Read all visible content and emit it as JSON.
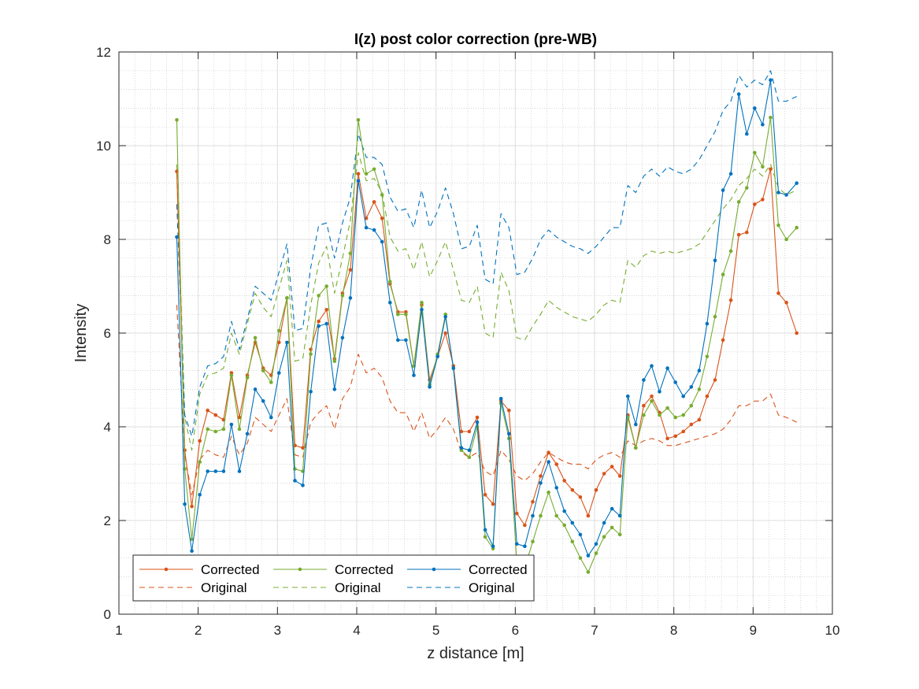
{
  "chart_data": {
    "type": "line",
    "title": "I(z) post color correction (pre-WB)",
    "xlabel": "z distance [m]",
    "ylabel": "Intensity",
    "xlim": [
      1,
      10
    ],
    "ylim": [
      0,
      12
    ],
    "xticks": [
      1,
      2,
      3,
      4,
      5,
      6,
      7,
      8,
      9,
      10
    ],
    "yticks": [
      0,
      2,
      4,
      6,
      8,
      10,
      12
    ],
    "grid": true,
    "minor_grid": true,
    "legend_position": "bottom-left",
    "x": [
      1.73,
      1.83,
      1.92,
      2.02,
      2.12,
      2.22,
      2.32,
      2.42,
      2.52,
      2.62,
      2.72,
      2.82,
      2.92,
      3.02,
      3.12,
      3.22,
      3.32,
      3.42,
      3.52,
      3.62,
      3.72,
      3.82,
      3.92,
      4.02,
      4.12,
      4.22,
      4.32,
      4.42,
      4.52,
      4.62,
      4.72,
      4.82,
      4.92,
      5.02,
      5.12,
      5.22,
      5.32,
      5.42,
      5.52,
      5.62,
      5.72,
      5.82,
      5.92,
      6.02,
      6.12,
      6.22,
      6.32,
      6.42,
      6.52,
      6.62,
      6.72,
      6.82,
      6.92,
      7.02,
      7.12,
      7.22,
      7.32,
      7.42,
      7.52,
      7.62,
      7.72,
      7.82,
      7.92,
      8.02,
      8.12,
      8.22,
      8.32,
      8.42,
      8.52,
      8.62,
      8.72,
      8.82,
      8.92,
      9.02,
      9.12,
      9.22,
      9.32,
      9.42,
      9.55
    ],
    "series": [
      {
        "name": "Corrected",
        "color": "#D95319",
        "style": "solid-marker",
        "values": [
          9.45,
          3.5,
          2.3,
          3.7,
          4.35,
          4.25,
          4.15,
          5.15,
          4.2,
          5.1,
          5.8,
          5.25,
          5.1,
          5.8,
          6.75,
          3.6,
          3.55,
          5.65,
          6.25,
          6.5,
          5.45,
          6.85,
          7.35,
          9.4,
          8.45,
          8.8,
          8.45,
          7.05,
          6.45,
          6.45,
          5.3,
          6.6,
          5.0,
          5.5,
          6.0,
          5.3,
          3.9,
          3.9,
          4.2,
          2.55,
          2.35,
          4.55,
          4.35,
          2.15,
          1.9,
          2.4,
          2.95,
          3.45,
          3.2,
          2.85,
          2.65,
          2.5,
          2.1,
          2.65,
          3.0,
          3.15,
          2.95,
          4.25,
          3.55,
          4.45,
          4.65,
          4.3,
          3.75,
          3.8,
          3.9,
          4.05,
          4.15,
          4.65,
          5.0,
          5.85,
          6.7,
          8.1,
          8.15,
          8.75,
          8.85,
          9.5,
          6.85,
          6.65,
          6.0
        ]
      },
      {
        "name": "Corrected",
        "color": "#77AC30",
        "style": "solid-marker",
        "values": [
          10.55,
          3.1,
          1.6,
          3.25,
          3.95,
          3.9,
          3.95,
          5.1,
          3.95,
          5.05,
          5.9,
          5.2,
          4.95,
          6.05,
          6.75,
          3.1,
          3.05,
          5.55,
          6.8,
          7.0,
          5.4,
          6.8,
          7.7,
          10.55,
          9.4,
          9.5,
          8.95,
          7.1,
          6.4,
          6.4,
          5.3,
          6.65,
          4.9,
          5.55,
          6.4,
          5.25,
          3.5,
          3.35,
          4.0,
          1.65,
          1.4,
          4.5,
          3.75,
          1.1,
          1.0,
          1.55,
          2.1,
          2.6,
          2.1,
          1.9,
          1.55,
          1.2,
          0.9,
          1.3,
          1.65,
          1.85,
          1.7,
          4.2,
          3.55,
          4.25,
          4.55,
          4.25,
          4.4,
          4.2,
          4.25,
          4.45,
          4.8,
          5.5,
          6.35,
          7.25,
          7.75,
          8.8,
          9.1,
          9.85,
          9.55,
          10.6,
          8.3,
          8.0,
          8.25
        ]
      },
      {
        "name": "Corrected",
        "color": "#0072BD",
        "style": "solid-marker",
        "values": [
          8.05,
          2.35,
          1.35,
          2.55,
          3.05,
          3.05,
          3.05,
          4.05,
          3.05,
          3.85,
          4.8,
          4.55,
          4.2,
          5.15,
          5.8,
          2.85,
          2.75,
          4.75,
          6.15,
          6.2,
          4.8,
          5.9,
          6.75,
          9.25,
          8.25,
          8.2,
          7.95,
          6.65,
          5.85,
          5.85,
          5.1,
          6.5,
          4.85,
          5.5,
          6.35,
          5.25,
          3.55,
          3.5,
          4.1,
          1.8,
          1.45,
          4.6,
          3.85,
          1.5,
          1.45,
          2.1,
          2.8,
          3.25,
          2.7,
          2.2,
          1.95,
          1.7,
          1.25,
          1.5,
          1.95,
          2.25,
          2.1,
          4.65,
          4.05,
          5.0,
          5.3,
          4.75,
          5.25,
          4.95,
          4.65,
          4.85,
          5.2,
          6.2,
          7.55,
          9.05,
          9.4,
          11.1,
          10.25,
          10.8,
          10.45,
          11.4,
          9.0,
          8.95,
          9.2
        ]
      },
      {
        "name": "Original",
        "color": "#D95319",
        "style": "dashed",
        "values": [
          6.6,
          3.4,
          2.55,
          3.3,
          3.5,
          3.4,
          3.35,
          3.8,
          3.4,
          3.65,
          4.2,
          4.05,
          3.9,
          4.25,
          4.6,
          3.4,
          3.35,
          4.1,
          4.3,
          4.45,
          3.95,
          4.6,
          4.85,
          5.55,
          5.15,
          5.25,
          5.05,
          4.55,
          4.3,
          4.3,
          3.9,
          4.3,
          3.75,
          3.95,
          4.2,
          3.95,
          3.45,
          3.35,
          3.45,
          3.05,
          2.95,
          3.5,
          3.3,
          2.95,
          2.85,
          3.0,
          3.25,
          3.45,
          3.35,
          3.25,
          3.2,
          3.2,
          3.1,
          3.3,
          3.4,
          3.45,
          3.35,
          3.7,
          3.6,
          3.7,
          3.75,
          3.7,
          3.6,
          3.6,
          3.65,
          3.7,
          3.75,
          3.8,
          3.85,
          3.95,
          4.15,
          4.45,
          4.45,
          4.55,
          4.55,
          4.7,
          4.25,
          4.2,
          4.1
        ]
      },
      {
        "name": "Original",
        "color": "#77AC30",
        "style": "dashed",
        "values": [
          9.6,
          4.2,
          3.5,
          4.7,
          5.1,
          5.15,
          5.25,
          6.0,
          5.55,
          6.2,
          6.85,
          6.55,
          6.35,
          6.95,
          7.55,
          5.4,
          5.45,
          6.6,
          7.5,
          7.85,
          6.85,
          7.6,
          8.4,
          9.85,
          9.25,
          9.3,
          9.0,
          8.05,
          7.75,
          7.8,
          7.35,
          7.95,
          7.2,
          7.55,
          7.95,
          7.35,
          6.7,
          6.65,
          7.0,
          6.0,
          5.9,
          7.3,
          6.9,
          5.9,
          5.85,
          6.15,
          6.4,
          6.7,
          6.55,
          6.45,
          6.35,
          6.3,
          6.25,
          6.4,
          6.6,
          6.7,
          6.65,
          7.55,
          7.4,
          7.65,
          7.75,
          7.7,
          7.75,
          7.7,
          7.75,
          7.8,
          7.9,
          8.15,
          8.4,
          8.65,
          8.85,
          9.15,
          9.3,
          9.5,
          9.35,
          9.6,
          9.1,
          8.95,
          9.05
        ]
      },
      {
        "name": "Original",
        "color": "#0072BD",
        "style": "dashed",
        "values": [
          8.75,
          4.25,
          3.8,
          4.85,
          5.3,
          5.35,
          5.5,
          6.25,
          5.65,
          6.3,
          7.0,
          6.85,
          6.7,
          7.3,
          7.9,
          6.05,
          6.1,
          7.4,
          8.3,
          8.35,
          7.6,
          8.35,
          8.9,
          10.25,
          9.75,
          9.75,
          9.6,
          8.9,
          8.6,
          8.65,
          8.25,
          9.05,
          8.25,
          8.6,
          9.1,
          8.55,
          7.8,
          7.85,
          8.3,
          7.15,
          7.05,
          8.55,
          8.25,
          7.25,
          7.3,
          7.6,
          8.0,
          8.2,
          8.05,
          7.95,
          7.85,
          7.8,
          7.7,
          7.85,
          8.05,
          8.25,
          8.25,
          9.15,
          9.0,
          9.35,
          9.5,
          9.35,
          9.55,
          9.45,
          9.4,
          9.5,
          9.7,
          10.0,
          10.3,
          10.75,
          10.95,
          11.5,
          11.25,
          11.4,
          11.3,
          11.6,
          10.95,
          10.95,
          11.05
        ]
      }
    ]
  }
}
